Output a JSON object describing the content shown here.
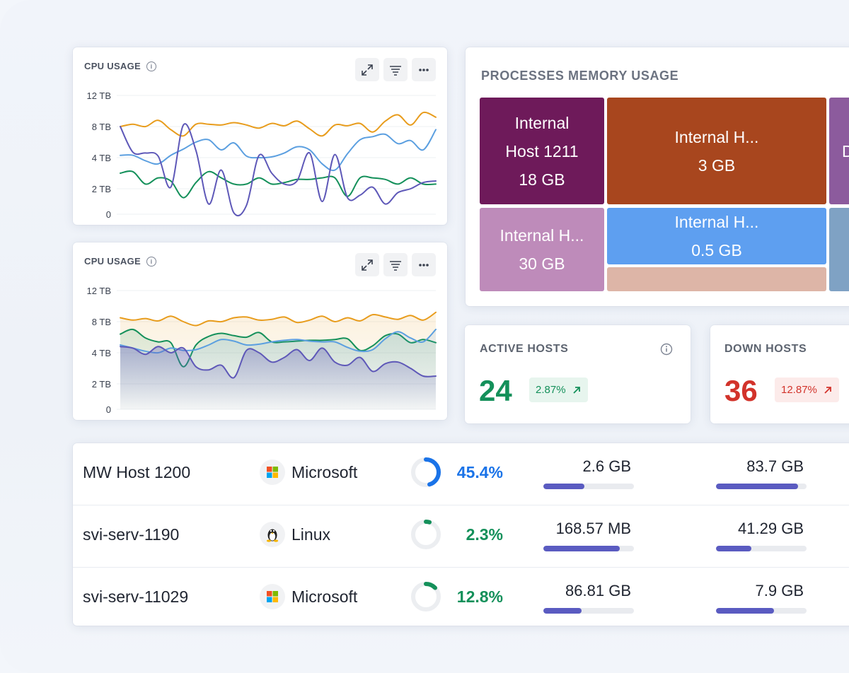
{
  "colors": {
    "orange": "#E89C1C",
    "blue": "#5B9FE0",
    "green": "#14905A",
    "purple": "#5E58B8",
    "up_green": "#14905A",
    "down_red": "#D2332B",
    "bar": "#5A5BC1"
  },
  "cpu_cards": [
    {
      "title": "CPU USAGE",
      "icons": [
        "info-icon",
        "expand-icon",
        "filter-icon",
        "more-icon"
      ],
      "chart_data": {
        "type": "line",
        "title": "CPU USAGE",
        "y_ticks": [
          "12 TB",
          "8 TB",
          "4 TB",
          "2 TB",
          "0"
        ],
        "ylim": [
          0,
          12
        ],
        "series": [
          {
            "name": "orange",
            "color": "#E89C1C",
            "values": [
              8.0,
              8.3,
              8.0,
              8.8,
              7.6,
              6.8,
              8.3,
              8.3,
              8.2,
              8.5,
              8.2,
              7.8,
              8.4,
              8.1,
              8.7,
              7.7,
              6.8,
              8.2,
              8.1,
              8.4,
              7.3,
              8.7,
              9.5,
              8.2,
              9.8,
              9.2
            ]
          },
          {
            "name": "blue",
            "color": "#5B9FE0",
            "values": [
              4.3,
              4.3,
              3.8,
              3.6,
              4.3,
              5.1,
              6.0,
              6.3,
              5.0,
              5.9,
              4.2,
              4.0,
              4.1,
              4.6,
              5.4,
              5.0,
              3.6,
              3.2,
              4.5,
              6.3,
              6.7,
              7.0,
              5.8,
              6.2,
              5.0,
              7.6
            ]
          },
          {
            "name": "green",
            "color": "#14905A",
            "values": [
              3.0,
              3.1,
              2.3,
              2.7,
              2.5,
              1.3,
              2.4,
              3.1,
              2.7,
              2.3,
              2.3,
              2.7,
              2.3,
              2.4,
              2.6,
              2.6,
              2.7,
              2.7,
              1.4,
              2.7,
              2.7,
              2.6,
              2.3,
              2.7,
              2.3,
              2.3
            ]
          },
          {
            "name": "purple",
            "color": "#5E58B8",
            "values": [
              8.0,
              4.7,
              4.6,
              4.2,
              2.1,
              8.2,
              4.9,
              0.8,
              3.2,
              0.1,
              0.7,
              4.3,
              3.0,
              2.3,
              2.5,
              4.6,
              1.0,
              4.4,
              1.3,
              1.5,
              2.1,
              0.8,
              1.7,
              2.0,
              2.4,
              2.5
            ]
          }
        ]
      }
    },
    {
      "title": "CPU USAGE",
      "icons": [
        "info-icon",
        "expand-icon",
        "filter-icon",
        "more-icon"
      ],
      "chart_data": {
        "type": "area",
        "title": "CPU USAGE",
        "y_ticks": [
          "12 TB",
          "8 TB",
          "4 TB",
          "2 TB",
          "0"
        ],
        "ylim": [
          0,
          12
        ],
        "series": [
          {
            "name": "orange",
            "color": "#E89C1C",
            "values": [
              8.5,
              8.2,
              8.4,
              8.1,
              8.7,
              8.0,
              7.5,
              8.1,
              8.0,
              8.5,
              8.6,
              8.2,
              8.3,
              8.6,
              7.9,
              8.2,
              8.7,
              8.0,
              8.5,
              8.1,
              8.9,
              8.6,
              8.3,
              8.8,
              8.2,
              9.2
            ]
          },
          {
            "name": "blue",
            "color": "#5B9FE0",
            "values": [
              5.0,
              4.6,
              4.2,
              4.0,
              4.6,
              4.3,
              4.4,
              5.0,
              5.7,
              5.5,
              5.0,
              5.1,
              5.4,
              5.6,
              5.7,
              5.5,
              5.4,
              5.4,
              4.7,
              4.2,
              4.4,
              5.8,
              6.7,
              5.9,
              5.4,
              7.0
            ]
          },
          {
            "name": "green",
            "color": "#14905A",
            "values": [
              6.4,
              7.0,
              5.9,
              5.4,
              5.3,
              3.1,
              5.0,
              6.1,
              6.5,
              6.2,
              6.0,
              6.6,
              5.4,
              5.4,
              5.5,
              5.6,
              5.6,
              5.7,
              5.8,
              4.3,
              4.9,
              6.2,
              6.4,
              5.3,
              5.7,
              5.3
            ]
          },
          {
            "name": "purple",
            "color": "#5E58B8",
            "values": [
              4.8,
              4.6,
              3.9,
              4.8,
              4.0,
              4.6,
              3.1,
              2.9,
              3.2,
              2.4,
              4.3,
              4.0,
              3.4,
              3.7,
              4.4,
              3.5,
              4.6,
              3.4,
              3.2,
              3.7,
              2.8,
              3.3,
              3.4,
              3.0,
              2.5,
              2.5
            ]
          }
        ]
      }
    }
  ],
  "processes": {
    "title": "PROCESSES MEMORY USAGE",
    "tiles": [
      {
        "id": "t1",
        "lines": [
          "Internal",
          "Host 1211",
          "18 GB"
        ],
        "color": "#6E1A5A"
      },
      {
        "id": "t2",
        "lines": [
          "Internal H...",
          "3 GB"
        ],
        "color": "#A8461E"
      },
      {
        "id": "t3",
        "lines": [
          "D"
        ],
        "color": "#8C5B9D"
      },
      {
        "id": "t4",
        "lines": [
          "Internal H...",
          "30 GB"
        ],
        "color": "#BE8BBA"
      },
      {
        "id": "t5",
        "lines": [
          "Internal H...",
          "0.5 GB"
        ],
        "color": "#5E9FF0"
      },
      {
        "id": "t6",
        "lines": [],
        "color": "#DDB5A7"
      },
      {
        "id": "t7",
        "lines": [],
        "color": "#7FA2C4"
      }
    ]
  },
  "hosts": {
    "active": {
      "title": "ACTIVE HOSTS",
      "value": "24",
      "change": "2.87%"
    },
    "down": {
      "title": "DOWN HOSTS",
      "value": "36",
      "change": "12.87%"
    }
  },
  "table": {
    "rows": [
      {
        "name": "MW Host 1200",
        "os": "Microsoft",
        "os_icon": "windows-icon",
        "cpu": "45.4%",
        "cpu_value": 45.4,
        "cpu_color": "#1A73E8",
        "mem": "2.6 GB",
        "mem_fill": 0.45,
        "disk": "83.7 GB",
        "disk_fill": 0.91
      },
      {
        "name": "svi-serv-1190",
        "os": "Linux",
        "os_icon": "linux-icon",
        "cpu": "2.3%",
        "cpu_value": 2.3,
        "cpu_color": "#14905A",
        "mem": "168.57 MB",
        "mem_fill": 0.84,
        "disk": "41.29 GB",
        "disk_fill": 0.39
      },
      {
        "name": "svi-serv-11029",
        "os": "Microsoft",
        "os_icon": "windows-icon",
        "cpu": "12.8%",
        "cpu_value": 12.8,
        "cpu_color": "#14905A",
        "mem": "86.81 GB",
        "mem_fill": 0.42,
        "disk": "7.9 GB",
        "disk_fill": 0.64
      }
    ]
  }
}
